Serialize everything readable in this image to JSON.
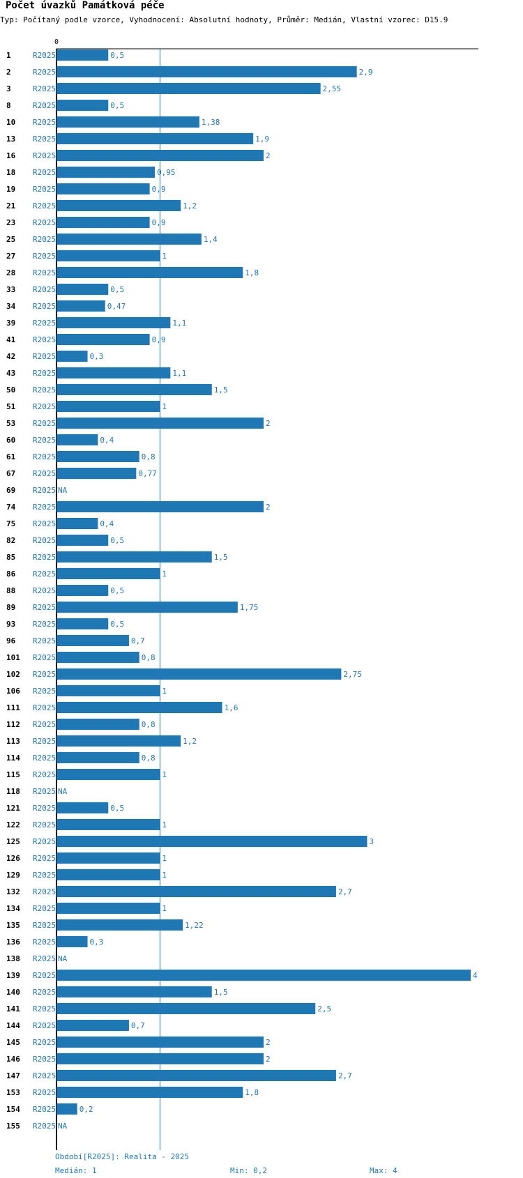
{
  "title": "Počet úvazků Památková péče",
  "subtitle": "Typ: Počítaný podle vzorce, Vyhodnocení: Absolutní hodnoty, Průměr: Medián, Vlastní vzorec: D15.9",
  "chart_data": {
    "type": "bar",
    "orientation": "horizontal",
    "title": "Počet úvazků Památková péče",
    "series_name": "R2025",
    "axis_tick_label": "0",
    "xlim": [
      0,
      4
    ],
    "median": 1,
    "categories": [
      "1",
      "2",
      "3",
      "8",
      "10",
      "13",
      "16",
      "18",
      "19",
      "21",
      "23",
      "25",
      "27",
      "28",
      "33",
      "34",
      "39",
      "41",
      "42",
      "43",
      "50",
      "51",
      "53",
      "60",
      "61",
      "67",
      "69",
      "74",
      "75",
      "82",
      "85",
      "86",
      "88",
      "89",
      "93",
      "96",
      "101",
      "102",
      "106",
      "111",
      "112",
      "113",
      "114",
      "115",
      "118",
      "121",
      "122",
      "125",
      "126",
      "129",
      "132",
      "134",
      "135",
      "136",
      "138",
      "139",
      "140",
      "141",
      "144",
      "145",
      "146",
      "147",
      "153",
      "154",
      "155"
    ],
    "values": [
      0.5,
      2.9,
      2.55,
      0.5,
      1.38,
      1.9,
      2,
      0.95,
      0.9,
      1.2,
      0.9,
      1.4,
      1,
      1.8,
      0.5,
      0.47,
      1.1,
      0.9,
      0.3,
      1.1,
      1.5,
      1,
      2,
      0.4,
      0.8,
      0.77,
      null,
      2,
      0.4,
      0.5,
      1.5,
      1,
      0.5,
      1.75,
      0.5,
      0.7,
      0.8,
      2.75,
      1,
      1.6,
      0.8,
      1.2,
      0.8,
      1,
      null,
      0.5,
      1,
      3,
      1,
      1,
      2.7,
      1,
      1.22,
      0.3,
      null,
      4,
      1.5,
      2.5,
      0.7,
      2,
      2,
      2.7,
      1.8,
      0.2,
      null
    ],
    "value_labels": [
      "0,5",
      "2,9",
      "2,55",
      "0,5",
      "1,38",
      "1,9",
      "2",
      "0,95",
      "0,9",
      "1,2",
      "0,9",
      "1,4",
      "1",
      "1,8",
      "0,5",
      "0,47",
      "1,1",
      "0,9",
      "0,3",
      "1,1",
      "1,5",
      "1",
      "2",
      "0,4",
      "0,8",
      "0,77",
      "NA",
      "2",
      "0,4",
      "0,5",
      "1,5",
      "1",
      "0,5",
      "1,75",
      "0,5",
      "0,7",
      "0,8",
      "2,75",
      "1",
      "1,6",
      "0,8",
      "1,2",
      "0,8",
      "1",
      "NA",
      "0,5",
      "1",
      "3",
      "1",
      "1",
      "2,7",
      "1",
      "1,22",
      "0,3",
      "NA",
      "4",
      "1,5",
      "2,5",
      "0,7",
      "2",
      "2",
      "2,7",
      "1,8",
      "0,2",
      "NA"
    ],
    "bar_color": "#1f77b4",
    "median_line_color": "#1f77b4"
  },
  "footer": {
    "period": "Období[R2025]: Realita - 2025",
    "median": "Medián: 1",
    "min": "Min: 0,2",
    "max": "Max: 4"
  }
}
